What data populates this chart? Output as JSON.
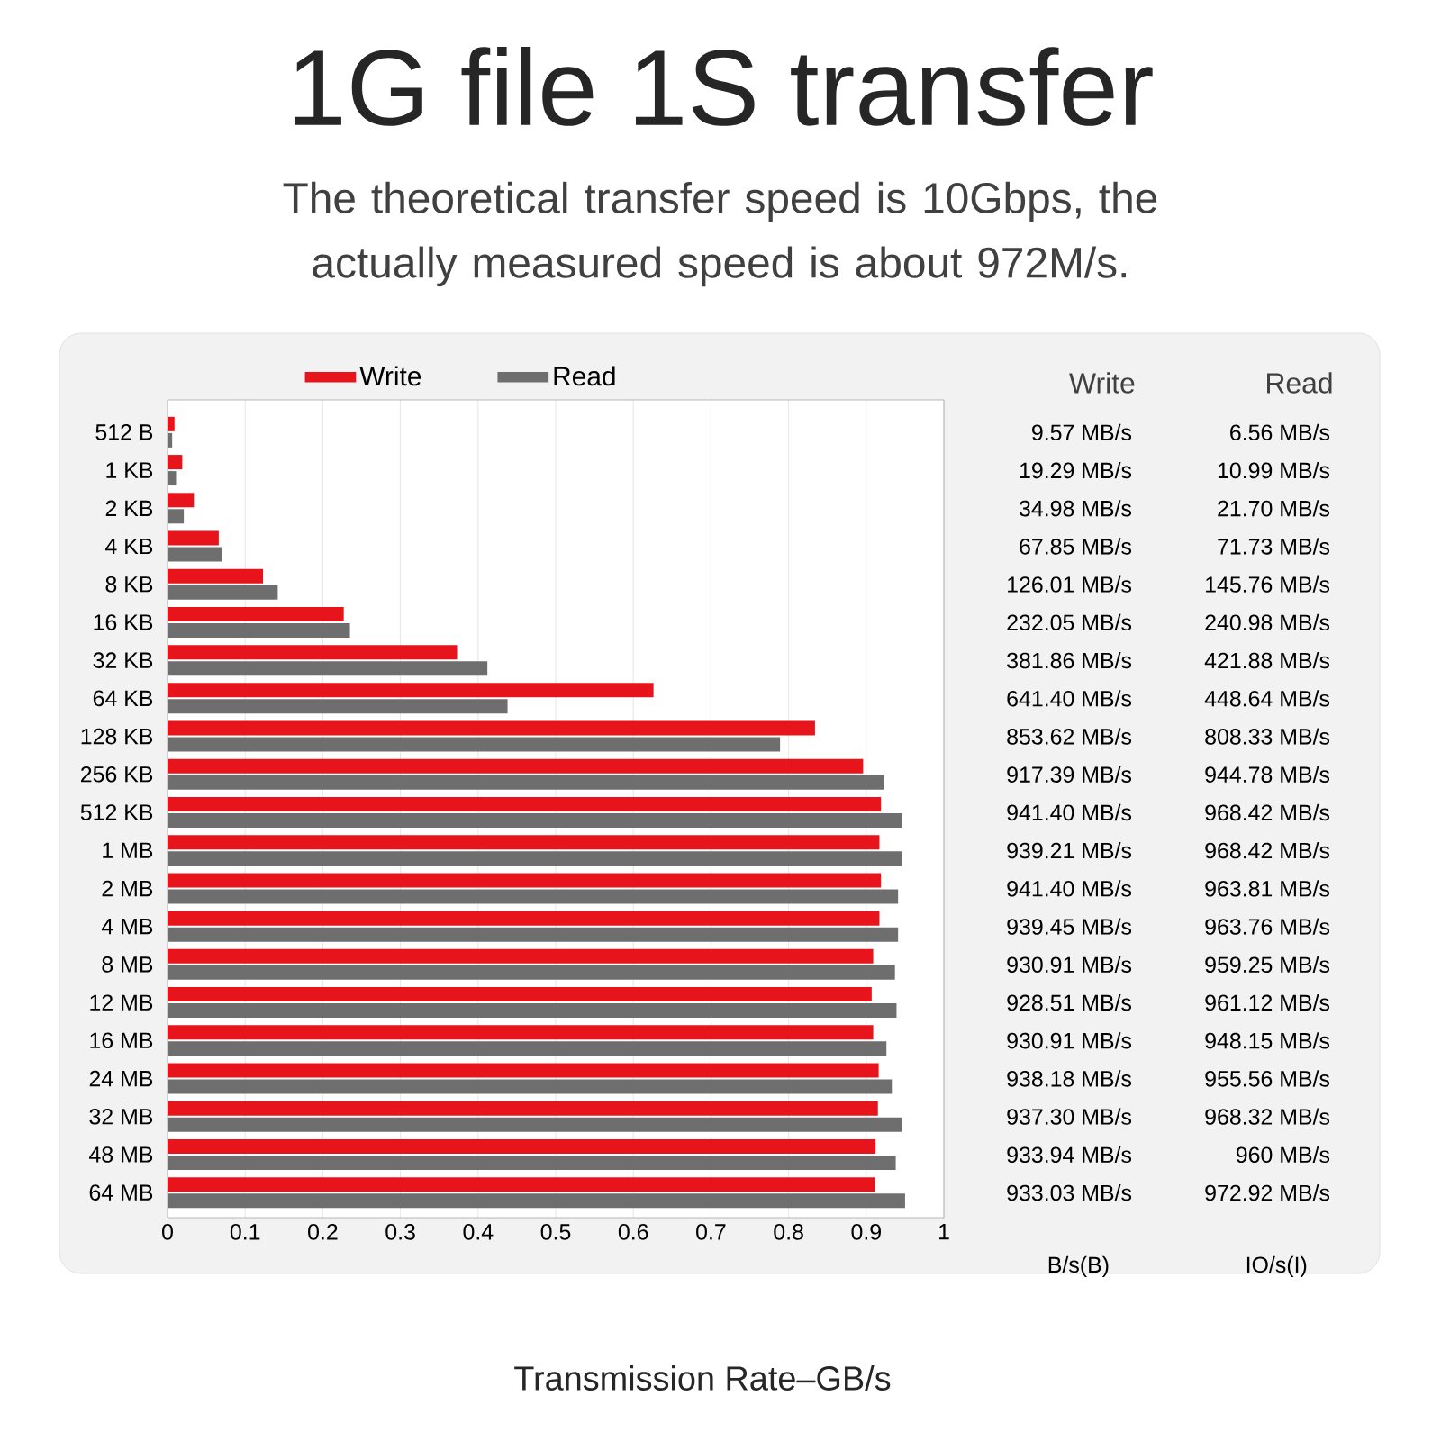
{
  "chart_data": {
    "type": "bar",
    "orientation": "horizontal",
    "title": "1G file 1S transfer",
    "subtitle": "The theoretical transfer speed is 10Gbps, the actually measured speed is about 972M/s.",
    "xlabel": "Transmission Rate–GB/s",
    "categories": [
      "512 B",
      "1 KB",
      "2 KB",
      "4 KB",
      "8 KB",
      "16 KB",
      "32 KB",
      "64 KB",
      "128 KB",
      "256 KB",
      "512 KB",
      "1 MB",
      "2 MB",
      "4 MB",
      "8 MB",
      "12 MB",
      "16 MB",
      "24 MB",
      "32 MB",
      "48 MB",
      "64 MB"
    ],
    "series": [
      {
        "name": "Write",
        "color": "#e8141c",
        "values": [
          0.009,
          0.019,
          0.034,
          0.066,
          0.123,
          0.227,
          0.373,
          0.626,
          0.834,
          0.896,
          0.919,
          0.917,
          0.919,
          0.917,
          0.909,
          0.907,
          0.909,
          0.916,
          0.915,
          0.912,
          0.911
        ]
      },
      {
        "name": "Read",
        "color": "#6e6e6e",
        "values": [
          0.006,
          0.011,
          0.021,
          0.07,
          0.142,
          0.235,
          0.412,
          0.438,
          0.789,
          0.923,
          0.946,
          0.946,
          0.941,
          0.941,
          0.937,
          0.939,
          0.926,
          0.933,
          0.946,
          0.938,
          0.95
        ]
      }
    ],
    "xlim": [
      0,
      1
    ],
    "xticks": [
      0,
      0.1,
      0.2,
      0.3,
      0.4,
      0.5,
      0.6,
      0.7,
      0.8,
      0.9,
      1
    ],
    "grid": "x",
    "legend": "top",
    "annotations": [
      "Write",
      "Read",
      "B/s(B)",
      "IO/s(I)",
      "9.57 MB/s",
      "6.56 MB/s",
      "19.29 MB/s",
      "10.99 MB/s",
      "34.98 MB/s",
      "21.70 MB/s",
      "67.85 MB/s",
      "71.73 MB/s",
      "126.01 MB/s",
      "145.76 MB/s",
      "232.05 MB/s",
      "240.98 MB/s",
      "381.86 MB/s",
      "421.88 MB/s",
      "641.40 MB/s",
      "448.64 MB/s",
      "853.62 MB/s",
      "808.33 MB/s",
      "917.39 MB/s",
      "944.78 MB/s",
      "941.40 MB/s",
      "968.42 MB/s",
      "939.21 MB/s",
      "968.42 MB/s",
      "941.40 MB/s",
      "963.81 MB/s",
      "939.45 MB/s",
      "963.76 MB/s",
      "930.91 MB/s",
      "959.25 MB/s",
      "928.51 MB/s",
      "961.12 MB/s",
      "930.91 MB/s",
      "948.15 MB/s",
      "938.18 MB/s",
      "955.56 MB/s",
      "937.30 MB/s",
      "968.32 MB/s",
      "933.94 MB/s",
      "960 MB/s",
      "933.03 MB/s",
      "972.92 MB/s"
    ]
  }
}
